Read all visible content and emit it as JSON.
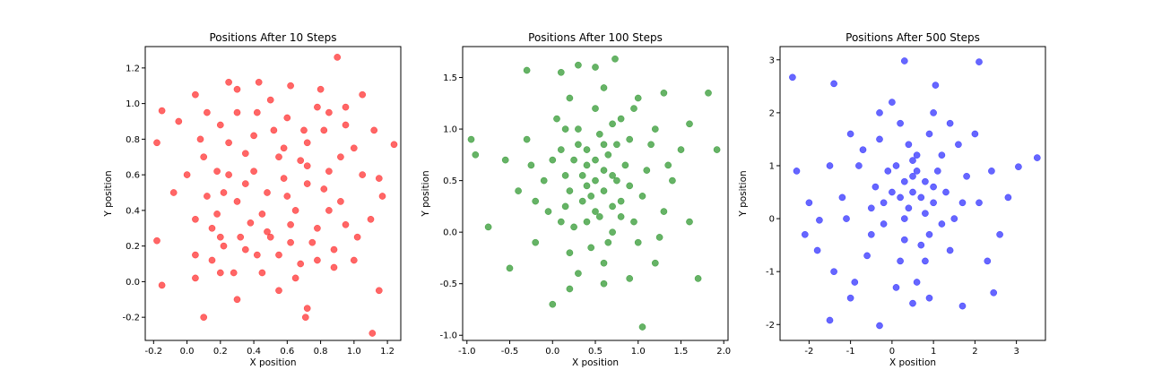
{
  "chart_data": [
    {
      "type": "scatter",
      "title": "Positions After 10 Steps",
      "xlabel": "X position",
      "ylabel": "Y position",
      "color": "#ff0000",
      "xlim": [
        -0.25,
        1.28
      ],
      "ylim": [
        -0.33,
        1.32
      ],
      "xticks": [
        "-0.2",
        "0.0",
        "0.2",
        "0.4",
        "0.6",
        "0.8",
        "1.0",
        "1.2"
      ],
      "xtick_values": [
        -0.2,
        0,
        0.2,
        0.4,
        0.6,
        0.8,
        1.0,
        1.2
      ],
      "yticks": [
        "-0.2",
        "0.0",
        "0.2",
        "0.4",
        "0.6",
        "0.8",
        "1.0",
        "1.2"
      ],
      "ytick_values": [
        -0.2,
        0,
        0.2,
        0.4,
        0.6,
        0.8,
        1.0,
        1.2
      ],
      "grid": false,
      "points": [
        [
          0.9,
          1.26
        ],
        [
          1.11,
          -0.29
        ],
        [
          0.1,
          -0.2
        ],
        [
          0.71,
          -0.2
        ],
        [
          -0.18,
          0.23
        ],
        [
          1.24,
          0.77
        ],
        [
          -0.15,
          0.96
        ],
        [
          0.43,
          1.12
        ],
        [
          0.05,
          1.05
        ],
        [
          1.05,
          1.05
        ],
        [
          0.25,
          1.12
        ],
        [
          -0.18,
          0.78
        ],
        [
          1.15,
          0.58
        ],
        [
          1.17,
          0.48
        ],
        [
          0.2,
          0.05
        ],
        [
          0.3,
          -0.1
        ],
        [
          0.55,
          -0.05
        ],
        [
          0.72,
          -0.15
        ],
        [
          -0.15,
          -0.02
        ],
        [
          1.15,
          -0.05
        ],
        [
          0.05,
          0.02
        ],
        [
          0.62,
          1.1
        ],
        [
          0.8,
          1.08
        ],
        [
          0.95,
          0.98
        ],
        [
          -0.05,
          0.9
        ],
        [
          0.4,
          0.82
        ],
        [
          0.55,
          0.7
        ],
        [
          0.72,
          0.78
        ],
        [
          0.85,
          0.62
        ],
        [
          0.3,
          0.45
        ],
        [
          0.65,
          0.4
        ],
        [
          0.15,
          0.3
        ],
        [
          0.5,
          0.25
        ],
        [
          0.78,
          0.3
        ],
        [
          1.02,
          0.25
        ],
        [
          0.25,
          0.6
        ],
        [
          0.1,
          0.7
        ],
        [
          0.92,
          0.45
        ],
        [
          0.42,
          0.15
        ],
        [
          0.68,
          0.1
        ],
        [
          0.2,
          0.88
        ],
        [
          0.6,
          0.92
        ],
        [
          0.82,
          0.85
        ],
        [
          1.0,
          0.75
        ],
        [
          0.35,
          0.72
        ],
        [
          0.48,
          0.5
        ],
        [
          0.12,
          0.48
        ],
        [
          0.88,
          0.18
        ],
        [
          0.58,
          0.58
        ],
        [
          0.22,
          0.2
        ],
        [
          0.72,
          0.55
        ],
        [
          0.38,
          0.33
        ],
        [
          0.95,
          0.88
        ],
        [
          0.05,
          0.35
        ],
        [
          1.1,
          0.35
        ],
        [
          0.3,
          0.95
        ],
        [
          0.68,
          0.68
        ],
        [
          0.52,
          0.85
        ],
        [
          0.18,
          0.62
        ],
        [
          0.85,
          0.4
        ],
        [
          0.45,
          0.05
        ],
        [
          0.75,
          0.22
        ],
        [
          0.0,
          0.6
        ],
        [
          1.05,
          0.6
        ],
        [
          0.32,
          0.25
        ],
        [
          0.62,
          0.32
        ],
        [
          0.15,
          0.12
        ],
        [
          0.88,
          0.08
        ],
        [
          0.42,
          0.95
        ],
        [
          0.78,
          0.98
        ],
        [
          0.25,
          0.78
        ],
        [
          0.55,
          0.15
        ],
        [
          0.7,
          0.85
        ],
        [
          0.92,
          0.7
        ],
        [
          0.08,
          0.8
        ],
        [
          0.35,
          0.55
        ],
        [
          0.6,
          0.48
        ],
        [
          0.82,
          0.52
        ],
        [
          0.18,
          0.38
        ],
        [
          0.45,
          0.38
        ],
        [
          0.28,
          0.05
        ],
        [
          0.65,
          0.02
        ],
        [
          1.0,
          0.12
        ],
        [
          -0.08,
          0.5
        ],
        [
          1.12,
          0.85
        ],
        [
          0.5,
          1.02
        ],
        [
          0.3,
          1.08
        ],
        [
          0.85,
          0.95
        ],
        [
          0.12,
          0.95
        ],
        [
          0.72,
          0.65
        ],
        [
          0.4,
          0.62
        ],
        [
          0.22,
          0.5
        ],
        [
          0.58,
          0.75
        ],
        [
          0.95,
          0.32
        ],
        [
          0.48,
          0.28
        ],
        [
          0.2,
          0.25
        ],
        [
          0.78,
          0.12
        ],
        [
          0.35,
          0.18
        ],
        [
          0.62,
          0.22
        ],
        [
          0.05,
          0.15
        ]
      ]
    },
    {
      "type": "scatter",
      "title": "Positions After 100 Steps",
      "xlabel": "X position",
      "ylabel": "Y position",
      "color": "#008000",
      "xlim": [
        -1.05,
        2.05
      ],
      "ylim": [
        -1.05,
        1.8
      ],
      "xticks": [
        "-1.0",
        "-0.5",
        "0.0",
        "0.5",
        "1.0",
        "1.5",
        "2.0"
      ],
      "xtick_values": [
        -1,
        -0.5,
        0,
        0.5,
        1.0,
        1.5,
        2.0
      ],
      "yticks": [
        "-1.0",
        "-0.5",
        "0.0",
        "0.5",
        "1.0",
        "1.5"
      ],
      "ytick_values": [
        -1,
        -0.5,
        0,
        0.5,
        1.0,
        1.5
      ],
      "grid": false,
      "points": [
        [
          0.73,
          1.68
        ],
        [
          1.05,
          -0.92
        ],
        [
          1.92,
          0.8
        ],
        [
          1.82,
          1.35
        ],
        [
          -0.95,
          0.9
        ],
        [
          -0.9,
          0.75
        ],
        [
          -0.3,
          1.57
        ],
        [
          0.0,
          -0.7
        ],
        [
          0.5,
          1.6
        ],
        [
          1.7,
          -0.45
        ],
        [
          -0.5,
          -0.35
        ],
        [
          0.1,
          1.55
        ],
        [
          0.3,
          1.62
        ],
        [
          1.3,
          1.35
        ],
        [
          1.6,
          1.05
        ],
        [
          -0.75,
          0.05
        ],
        [
          0.2,
          -0.55
        ],
        [
          0.6,
          -0.5
        ],
        [
          1.2,
          -0.3
        ],
        [
          -0.2,
          0.3
        ],
        [
          0.4,
          0.8
        ],
        [
          0.6,
          0.6
        ],
        [
          0.2,
          0.4
        ],
        [
          0.8,
          0.3
        ],
        [
          0.5,
          0.2
        ],
        [
          0.3,
          1.0
        ],
        [
          0.9,
          0.9
        ],
        [
          0.0,
          0.7
        ],
        [
          1.1,
          0.6
        ],
        [
          0.7,
          0.0
        ],
        [
          0.1,
          0.1
        ],
        [
          1.3,
          0.2
        ],
        [
          -0.3,
          0.9
        ],
        [
          0.5,
          1.2
        ],
        [
          0.8,
          1.1
        ],
        [
          0.2,
          -0.2
        ],
        [
          1.0,
          -0.1
        ],
        [
          -0.1,
          0.5
        ],
        [
          1.4,
          0.5
        ],
        [
          0.6,
          -0.3
        ],
        [
          0.35,
          0.55
        ],
        [
          0.65,
          0.75
        ],
        [
          0.45,
          0.35
        ],
        [
          0.75,
          0.5
        ],
        [
          0.25,
          0.7
        ],
        [
          0.55,
          0.95
        ],
        [
          0.85,
          0.65
        ],
        [
          0.15,
          0.25
        ],
        [
          1.05,
          0.35
        ],
        [
          0.4,
          0.1
        ],
        [
          0.7,
          0.25
        ],
        [
          0.95,
          1.2
        ],
        [
          0.05,
          1.1
        ],
        [
          -0.4,
          0.4
        ],
        [
          1.5,
          0.8
        ],
        [
          1.2,
          1.0
        ],
        [
          -0.2,
          -0.1
        ],
        [
          0.3,
          -0.4
        ],
        [
          0.9,
          -0.45
        ],
        [
          1.6,
          0.1
        ],
        [
          -0.55,
          0.7
        ],
        [
          0.6,
          1.4
        ],
        [
          0.2,
          1.3
        ],
        [
          1.0,
          1.3
        ],
        [
          0.5,
          0.5
        ],
        [
          0.4,
          0.65
        ],
        [
          0.6,
          0.4
        ],
        [
          0.3,
          0.85
        ],
        [
          0.75,
          0.85
        ],
        [
          0.15,
          0.55
        ],
        [
          0.9,
          0.45
        ],
        [
          0.55,
          0.15
        ],
        [
          0.35,
          0.3
        ],
        [
          0.8,
          0.15
        ],
        [
          0.1,
          0.8
        ],
        [
          1.15,
          0.85
        ],
        [
          -0.05,
          0.2
        ],
        [
          1.25,
          -0.05
        ],
        [
          0.45,
          -0.15
        ],
        [
          0.7,
          1.05
        ],
        [
          0.25,
          0.05
        ],
        [
          1.35,
          0.65
        ],
        [
          -0.25,
          0.65
        ],
        [
          0.65,
          -0.1
        ],
        [
          0.95,
          0.1
        ],
        [
          0.15,
          1.0
        ],
        [
          0.5,
          0.7
        ],
        [
          0.7,
          0.55
        ],
        [
          0.4,
          0.45
        ],
        [
          0.6,
          0.85
        ]
      ]
    },
    {
      "type": "scatter",
      "title": "Positions After 500 Steps",
      "xlabel": "X position",
      "ylabel": "Y position",
      "color": "#0000ff",
      "xlim": [
        -2.7,
        3.7
      ],
      "ylim": [
        -2.3,
        3.25
      ],
      "xticks": [
        "-2",
        "-1",
        "0",
        "1",
        "2",
        "3"
      ],
      "xtick_values": [
        -2,
        -1,
        0,
        1,
        2,
        3
      ],
      "yticks": [
        "-2",
        "-1",
        "0",
        "1",
        "2",
        "3"
      ],
      "ytick_values": [
        -2,
        -1,
        0,
        1,
        2,
        3
      ],
      "grid": false,
      "points": [
        [
          -2.4,
          2.67
        ],
        [
          0.3,
          2.98
        ],
        [
          2.1,
          2.96
        ],
        [
          3.5,
          1.15
        ],
        [
          -0.3,
          -2.02
        ],
        [
          -1.5,
          -1.92
        ],
        [
          2.45,
          -1.4
        ],
        [
          3.05,
          0.98
        ],
        [
          -2.3,
          0.9
        ],
        [
          -1.4,
          2.55
        ],
        [
          1.05,
          2.52
        ],
        [
          -1.75,
          -0.03
        ],
        [
          2.8,
          0.4
        ],
        [
          -1.0,
          -1.5
        ],
        [
          1.7,
          -1.65
        ],
        [
          2.6,
          -0.3
        ],
        [
          0.0,
          0.5
        ],
        [
          0.5,
          0.8
        ],
        [
          1.0,
          0.3
        ],
        [
          -0.5,
          0.2
        ],
        [
          0.3,
          -0.4
        ],
        [
          1.2,
          1.2
        ],
        [
          -0.8,
          1.0
        ],
        [
          0.8,
          -0.8
        ],
        [
          1.5,
          0.0
        ],
        [
          -0.3,
          1.5
        ],
        [
          0.2,
          1.8
        ],
        [
          1.8,
          0.8
        ],
        [
          -1.2,
          0.4
        ],
        [
          0.6,
          -1.2
        ],
        [
          1.4,
          -0.6
        ],
        [
          -0.6,
          -0.7
        ],
        [
          0.9,
          1.6
        ],
        [
          2.1,
          0.3
        ],
        [
          -1.0,
          1.6
        ],
        [
          0.4,
          0.2
        ],
        [
          0.7,
          0.4
        ],
        [
          0.1,
          1.0
        ],
        [
          1.1,
          0.9
        ],
        [
          -0.2,
          -0.1
        ],
        [
          0.5,
          0.5
        ],
        [
          0.3,
          0.7
        ],
        [
          0.8,
          0.1
        ],
        [
          -0.4,
          0.6
        ],
        [
          1.3,
          0.5
        ],
        [
          0.2,
          -0.8
        ],
        [
          0.9,
          -0.3
        ],
        [
          -0.7,
          1.3
        ],
        [
          1.6,
          1.4
        ],
        [
          0.0,
          2.2
        ],
        [
          -1.5,
          1.0
        ],
        [
          2.3,
          -0.8
        ],
        [
          -1.8,
          -0.6
        ],
        [
          0.5,
          -1.6
        ],
        [
          1.0,
          2.0
        ],
        [
          -0.9,
          -1.2
        ],
        [
          2.0,
          1.6
        ],
        [
          -2.0,
          0.3
        ],
        [
          0.6,
          1.2
        ],
        [
          0.2,
          0.4
        ],
        [
          0.8,
          0.7
        ],
        [
          0.4,
          1.4
        ],
        [
          -0.1,
          0.9
        ],
        [
          1.2,
          -0.1
        ],
        [
          0.7,
          -0.5
        ],
        [
          -0.5,
          -0.3
        ],
        [
          1.7,
          0.3
        ],
        [
          -1.1,
          0.0
        ],
        [
          0.1,
          -1.3
        ],
        [
          1.4,
          1.8
        ],
        [
          -0.3,
          2.0
        ],
        [
          2.4,
          0.9
        ],
        [
          -1.4,
          -1.0
        ],
        [
          0.9,
          -1.5
        ],
        [
          -2.1,
          -0.3
        ],
        [
          0.3,
          0.0
        ],
        [
          0.6,
          0.9
        ],
        [
          1.0,
          0.6
        ],
        [
          -0.2,
          0.3
        ],
        [
          0.5,
          1.1
        ]
      ]
    }
  ]
}
